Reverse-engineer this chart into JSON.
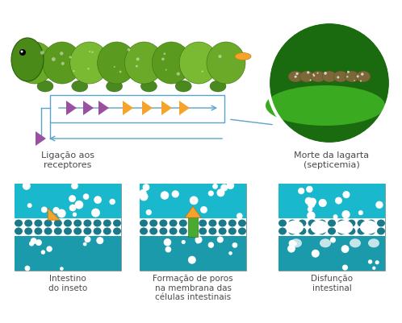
{
  "bg_color": "#ffffff",
  "teal_light": "#1ab8cc",
  "teal_mid": "#1a9aaa",
  "teal_dark": "#1a7a8a",
  "orange": "#f5a32a",
  "green_pore": "#4aaa30",
  "purple": "#9b4fa0",
  "white": "#ffffff",
  "arrow_color": "#5ba4c8",
  "text_color": "#4a4a4a",
  "caterpillar_main": "#5a9020",
  "caterpillar_dark": "#3a7010",
  "caterpillar_light": "#7ab030",
  "panel1_label_top": "Ligação aos\nreceptores",
  "panel2_label_top": "",
  "panel3_label_top": "Morte da lagarta\n(septicemia)",
  "panel1_label_bot": "Intestino\ndo inseto",
  "panel2_label_bot": "Formação de poros\nna membrana das\ncélulas intestinais",
  "panel3_label_bot": "Disfunção\nintestinal",
  "font_size_top": 8.0,
  "font_size_bot": 7.5
}
